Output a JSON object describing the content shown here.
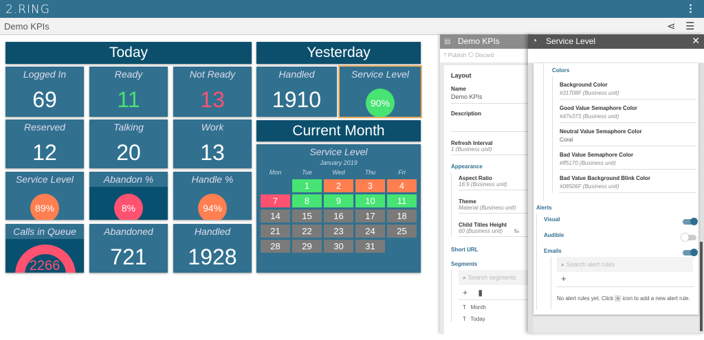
{
  "app": {
    "logo": "2.RING",
    "page_title": "Demo KPIs"
  },
  "colors": {
    "tile": "#31708f",
    "header": "#0b4f6c",
    "good": "#47e373",
    "neutral": "#ff7f50",
    "bad": "#ff5170",
    "dark": "#08506f",
    "gray": "#7a7a7a"
  },
  "today": {
    "title": "Today",
    "tiles": [
      {
        "title": "Logged In",
        "value": "69",
        "kind": "num"
      },
      {
        "title": "Ready",
        "value": "11",
        "kind": "num",
        "color": "#47e373"
      },
      {
        "title": "Not Ready",
        "value": "13",
        "kind": "num",
        "color": "#ff5170"
      },
      {
        "title": "Reserved",
        "value": "12",
        "kind": "num"
      },
      {
        "title": "Talking",
        "value": "20",
        "kind": "num"
      },
      {
        "title": "Work",
        "value": "13",
        "kind": "num"
      },
      {
        "title": "Service Level",
        "value": "89%",
        "kind": "circle",
        "color": "#ff7f50"
      },
      {
        "title": "Abandon %",
        "value": "8%",
        "kind": "circle",
        "color": "#ff5170",
        "dark": true
      },
      {
        "title": "Handle %",
        "value": "94%",
        "kind": "circle",
        "color": "#ff7f50"
      },
      {
        "title": "Calls in Queue",
        "value": "2266",
        "kind": "gauge",
        "color": "#ff5170",
        "dark": true
      },
      {
        "title": "Abandoned",
        "value": "721",
        "kind": "num"
      },
      {
        "title": "Handled",
        "value": "1928",
        "kind": "num"
      }
    ]
  },
  "yesterday": {
    "title": "Yesterday",
    "tiles": [
      {
        "title": "Handled",
        "value": "1910",
        "kind": "num"
      },
      {
        "title": "Service Level",
        "value": "90%",
        "kind": "circle",
        "color": "#47e373",
        "selected": true
      }
    ]
  },
  "current_month": {
    "title": "Current Month",
    "calendar": {
      "title": "Service Level",
      "month": "January 2019",
      "weekdays": [
        "Mon",
        "Tue",
        "Wed",
        "Thu",
        "Fri"
      ],
      "days": [
        {
          "d": "",
          "s": "none"
        },
        {
          "d": "1",
          "s": "good"
        },
        {
          "d": "2",
          "s": "neutral"
        },
        {
          "d": "3",
          "s": "neutral"
        },
        {
          "d": "4",
          "s": "neutral"
        },
        {
          "d": "7",
          "s": "bad"
        },
        {
          "d": "8",
          "s": "good"
        },
        {
          "d": "9",
          "s": "good"
        },
        {
          "d": "10",
          "s": "good"
        },
        {
          "d": "11",
          "s": "good"
        },
        {
          "d": "14",
          "s": "gray"
        },
        {
          "d": "15",
          "s": "gray"
        },
        {
          "d": "16",
          "s": "gray"
        },
        {
          "d": "17",
          "s": "gray"
        },
        {
          "d": "18",
          "s": "gray"
        },
        {
          "d": "21",
          "s": "gray"
        },
        {
          "d": "22",
          "s": "gray"
        },
        {
          "d": "23",
          "s": "gray"
        },
        {
          "d": "24",
          "s": "gray"
        },
        {
          "d": "25",
          "s": "gray"
        },
        {
          "d": "28",
          "s": "gray"
        },
        {
          "d": "29",
          "s": "gray"
        },
        {
          "d": "30",
          "s": "gray"
        },
        {
          "d": "31",
          "s": "gray"
        }
      ]
    }
  },
  "layout_panel": {
    "title": "Demo KPIs",
    "publish": "Publish",
    "discard": "Discard",
    "layout": "Layout",
    "name_label": "Name",
    "name_value": "Demo KPIs",
    "description_label": "Description",
    "refresh_label": "Refresh Interval",
    "refresh_value": "1 (Business unit)",
    "appearance": "Appearance",
    "aspect_label": "Aspect Ratio",
    "aspect_value": "16:9 (Business unit)",
    "theme_label": "Theme",
    "theme_value": "Material (Business unit)",
    "child_label": "Child Titles Height",
    "child_value": "60 (Business unit)",
    "child_unit": "‰",
    "short_url": "Short URL",
    "segments": "Segments",
    "search_placeholder": "Search segments",
    "segment_items": [
      "Month",
      "Today"
    ]
  },
  "sl_panel": {
    "title": "Service Level",
    "colors": "Colors",
    "fields": [
      {
        "label": "Background Color",
        "value": "#31708F (Business unit)",
        "italic": true
      },
      {
        "label": "Good Value Semaphore Color",
        "value": "#47e373 (Business unit)",
        "italic": true
      },
      {
        "label": "Neutral Value Semaphore Color",
        "value": "Coral",
        "italic": false
      },
      {
        "label": "Bad Value Semaphore Color",
        "value": "#ff5170 (Business unit)",
        "italic": true
      },
      {
        "label": "Bad Value Background Blink Color",
        "value": "#08506F (Business unit)",
        "italic": true
      }
    ],
    "alerts": "Alerts",
    "visual": "Visual",
    "visual_on": true,
    "audible": "Audible",
    "audible_on": false,
    "emails": "Emails",
    "emails_on": true,
    "search_placeholder": "Search alert rules",
    "empty_a": "No alert rules yet. Click",
    "empty_b": "icon to add a new alert rule."
  }
}
